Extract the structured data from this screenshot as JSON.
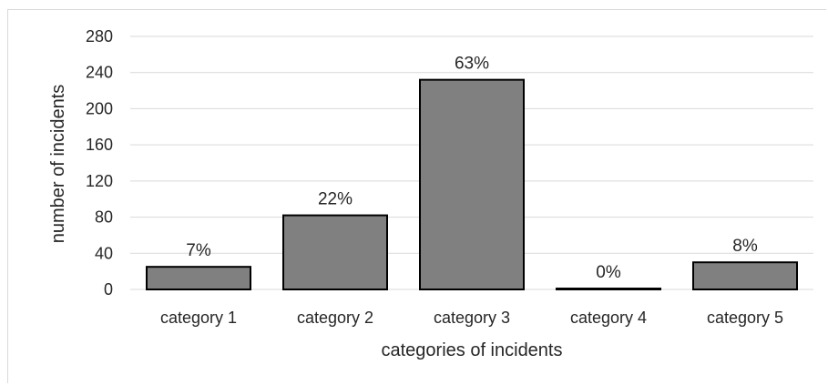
{
  "chart_data": {
    "type": "bar",
    "categories": [
      "category 1",
      "category 2",
      "category 3",
      "category 4",
      "category 5"
    ],
    "values": [
      25,
      82,
      232,
      1,
      30
    ],
    "data_labels": [
      "7%",
      "22%",
      "63%",
      "0%",
      "8%"
    ],
    "xlabel": "categories of incidents",
    "ylabel": "number of incidents",
    "ylim": [
      0,
      280
    ],
    "yticks": [
      0,
      40,
      80,
      120,
      160,
      200,
      240,
      280
    ],
    "grid": true,
    "legend": "none",
    "colors": {
      "bar_fill": "#808080",
      "bar_stroke": "#000000",
      "grid": "#d9d9d9"
    }
  }
}
